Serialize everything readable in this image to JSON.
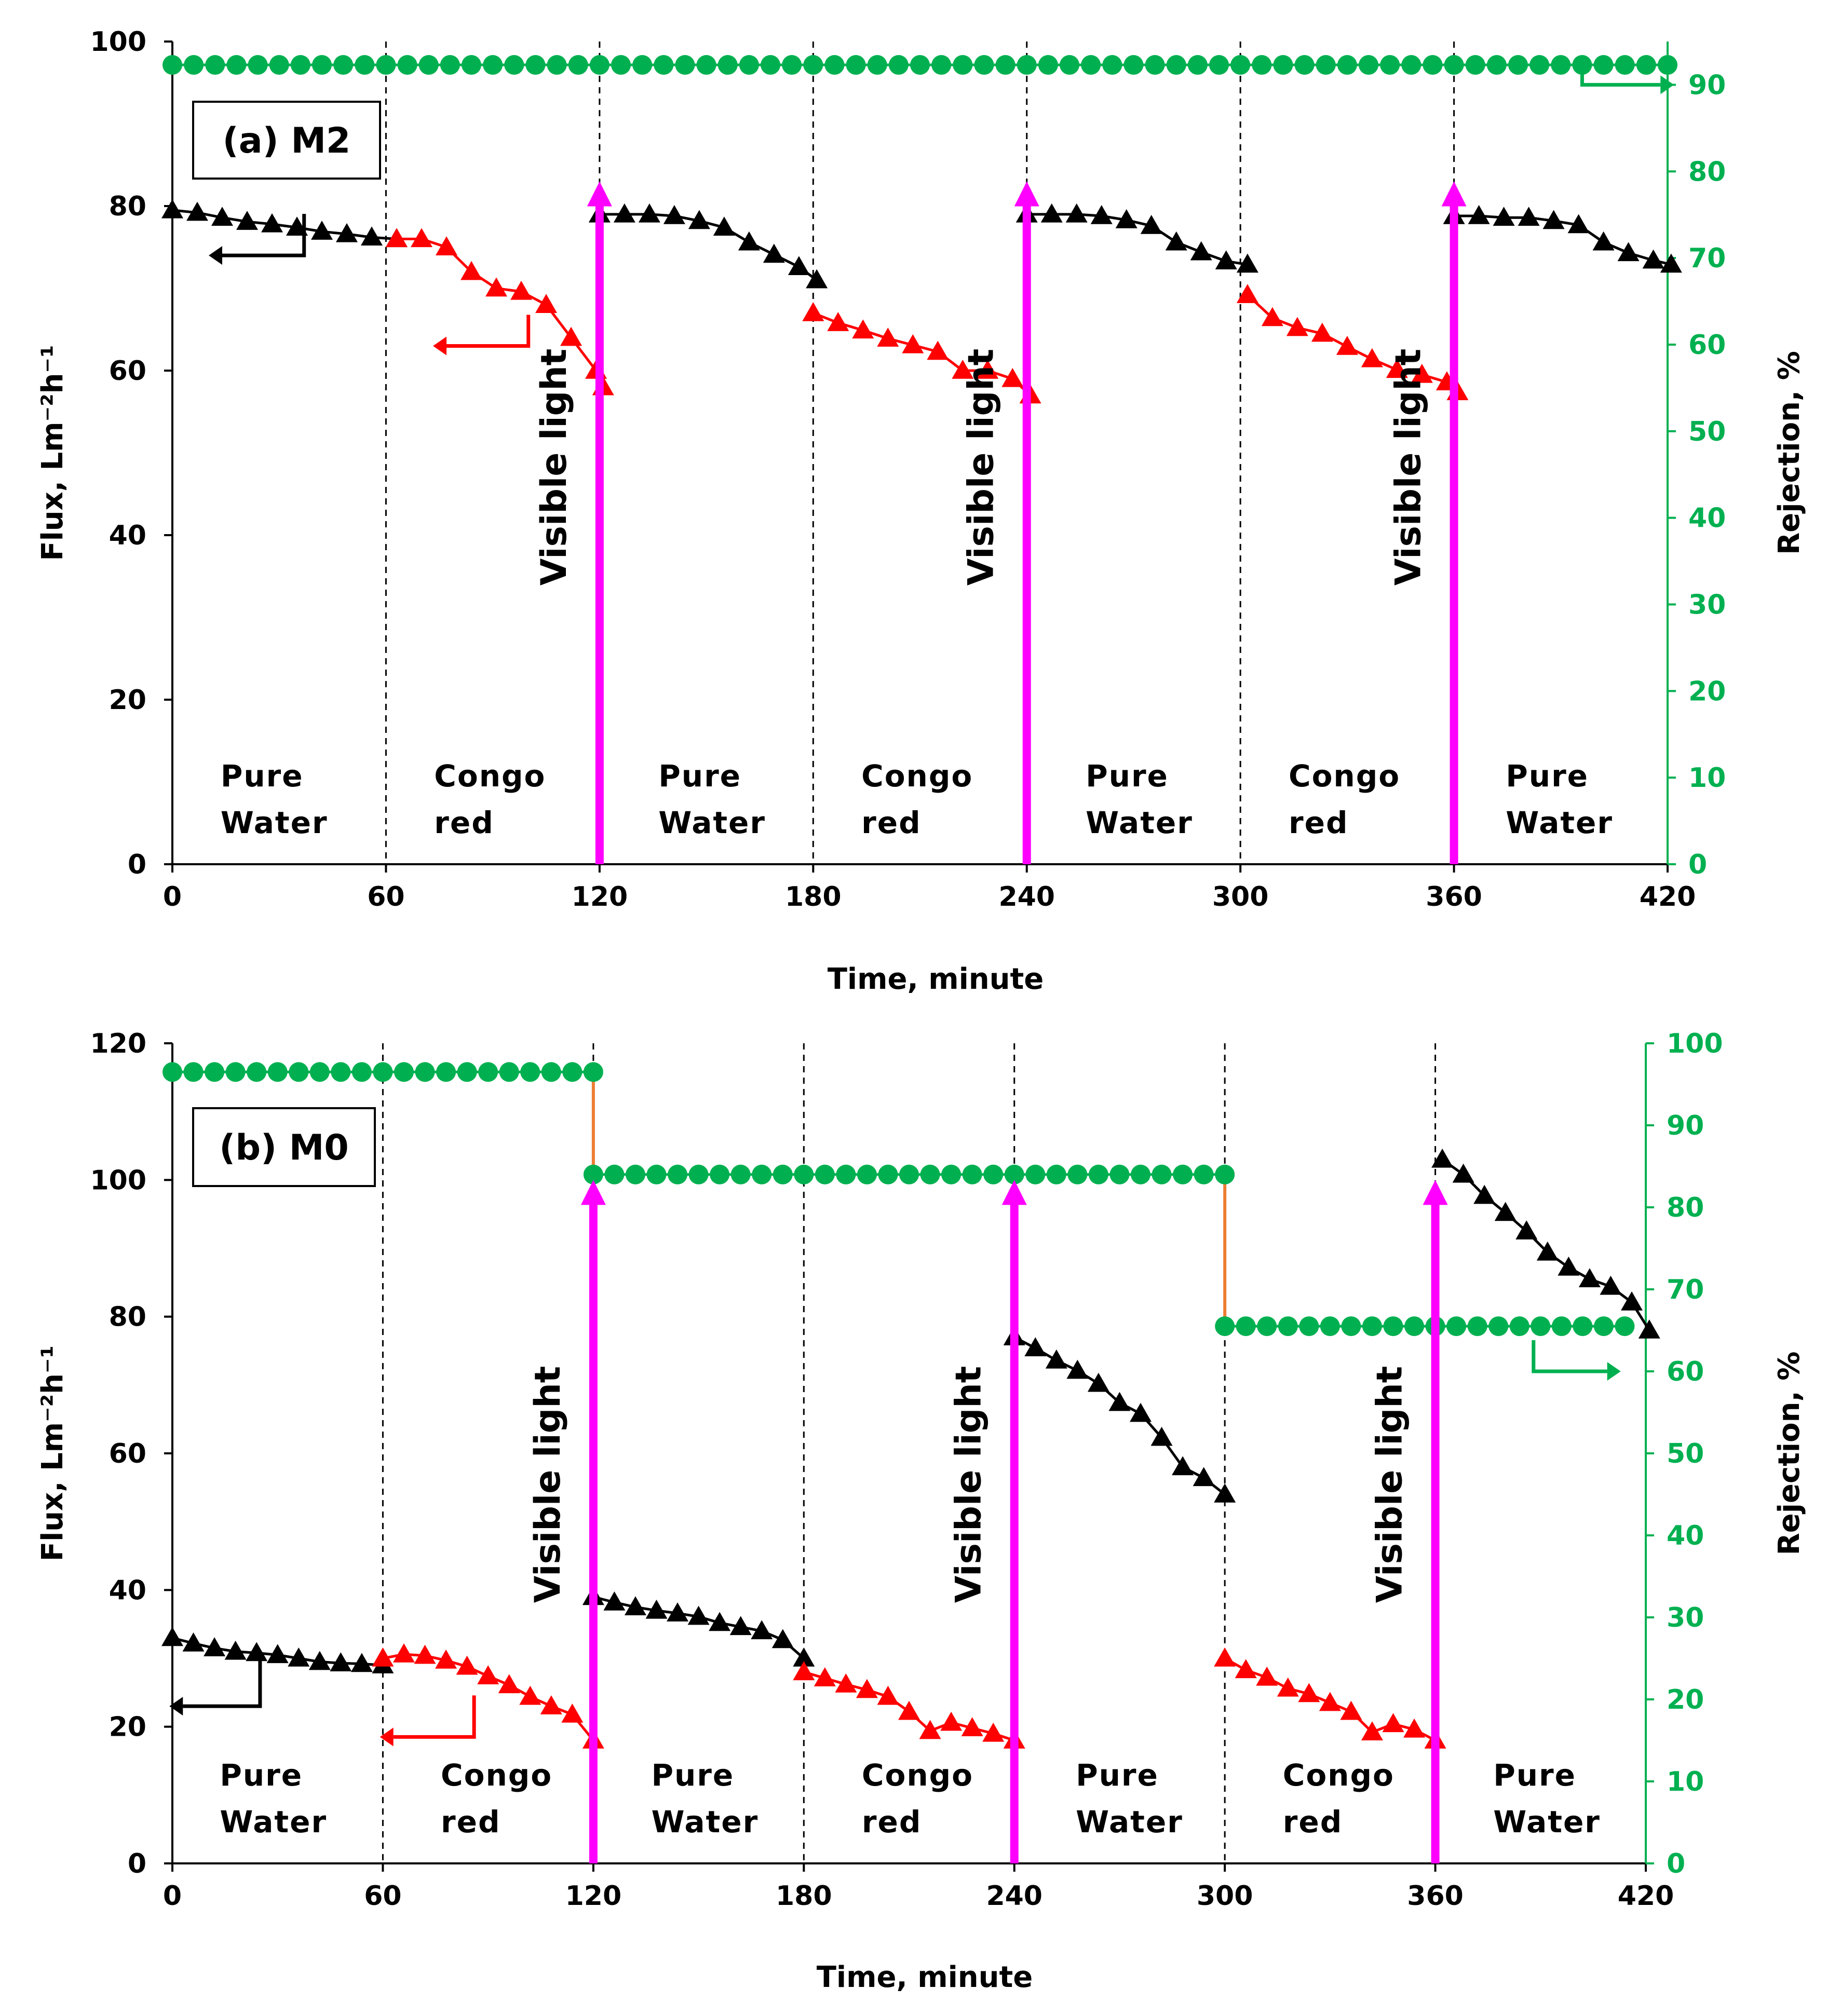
{
  "chart_data": [
    {
      "type": "line",
      "panel_label": "(a) M2",
      "xlabel": "Time, minute",
      "ylabel_left": "Flux, Lm⁻²h⁻¹",
      "ylabel_right": "Rejection, %",
      "xlim": [
        0,
        420
      ],
      "xticks": [
        0,
        60,
        120,
        180,
        240,
        300,
        360,
        420
      ],
      "ylim_left": [
        0,
        100
      ],
      "yticks_left": [
        0,
        20,
        40,
        60,
        80,
        100
      ],
      "ylim_right": [
        0,
        95
      ],
      "yticks_right": [
        0,
        10,
        20,
        30,
        40,
        50,
        60,
        70,
        80,
        90
      ],
      "vlines": [
        60,
        120,
        180,
        240,
        300,
        360
      ],
      "visible_light": {
        "label": "Visible light",
        "times": [
          120,
          240,
          360
        ],
        "top": 83
      },
      "regions": [
        {
          "t": 15,
          "line1": "Pure",
          "line2": "Water"
        },
        {
          "t": 75,
          "line1": "Congo",
          "line2": "red"
        },
        {
          "t": 138,
          "line1": "Pure",
          "line2": "Water"
        },
        {
          "t": 195,
          "line1": "Congo",
          "line2": "red"
        },
        {
          "t": 258,
          "line1": "Pure",
          "line2": "Water"
        },
        {
          "t": 315,
          "line1": "Congo",
          "line2": "red"
        },
        {
          "t": 376,
          "line1": "Pure",
          "line2": "Water"
        }
      ],
      "series": [
        {
          "name": "Pure water flux",
          "axis": "left",
          "color": "#000000",
          "marker": "triangle",
          "segments": [
            {
              "x": [
                0,
                7,
                14,
                21,
                28,
                35,
                42,
                49,
                56,
                63
              ],
              "y": [
                79.5,
                79.2,
                78.6,
                78.1,
                77.8,
                77.4,
                76.9,
                76.6,
                76.2,
                76
              ]
            },
            {
              "x": [
                120,
                127,
                134,
                141,
                148,
                155,
                162,
                169,
                176,
                181
              ],
              "y": [
                79,
                79,
                79,
                78.8,
                78.2,
                77.4,
                75.6,
                74.1,
                72.6,
                71
              ]
            },
            {
              "x": [
                240,
                247,
                254,
                261,
                268,
                275,
                282,
                289,
                296,
                302
              ],
              "y": [
                79,
                79,
                79,
                78.8,
                78.3,
                77.6,
                75.6,
                74.4,
                73.3,
                72.9
              ]
            },
            {
              "x": [
                360,
                367,
                374,
                381,
                388,
                395,
                402,
                409,
                416,
                421
              ],
              "y": [
                78.8,
                78.8,
                78.6,
                78.6,
                78.2,
                77.7,
                75.6,
                74.3,
                73.4,
                72.9
              ]
            }
          ]
        },
        {
          "name": "Congo red flux",
          "axis": "left",
          "color": "#ff0000",
          "marker": "triangle",
          "segments": [
            {
              "x": [
                63,
                70,
                77,
                84,
                91,
                98,
                105,
                112,
                119,
                121
              ],
              "y": [
                76,
                76,
                75,
                72,
                70,
                69.6,
                68,
                64,
                60,
                58
              ]
            },
            {
              "x": [
                180,
                187,
                194,
                201,
                208,
                215,
                222,
                229,
                236,
                241
              ],
              "y": [
                67,
                65.8,
                64.9,
                63.9,
                63.1,
                62.3,
                60,
                60,
                59,
                57
              ]
            },
            {
              "x": [
                302,
                309,
                316,
                323,
                330,
                337,
                344,
                351,
                358,
                361
              ],
              "y": [
                69.2,
                66.4,
                65.2,
                64.5,
                62.9,
                61.4,
                60.1,
                59.5,
                58.6,
                57.4
              ]
            }
          ]
        },
        {
          "name": "Rejection",
          "axis": "right",
          "color": "#00b050",
          "marker": "circle",
          "segments": [
            {
              "x_start": 0,
              "x_end": 420,
              "step": 6,
              "y": 92.3
            }
          ]
        }
      ],
      "legend_arrows": [
        {
          "series": "Pure water flux",
          "direction": "left",
          "value": 74
        },
        {
          "series": "Congo red flux",
          "direction": "left",
          "value": 63
        },
        {
          "series": "Rejection",
          "direction": "right",
          "value": 90
        }
      ]
    },
    {
      "type": "line",
      "panel_label": "(b) M0",
      "xlabel": "Time, minute",
      "ylabel_left": "Flux, Lm⁻²h⁻¹",
      "ylabel_right": "Rejection, %",
      "xlim": [
        0,
        420
      ],
      "xticks": [
        0,
        60,
        120,
        180,
        240,
        300,
        360,
        420
      ],
      "ylim_left": [
        0,
        120
      ],
      "yticks_left": [
        0,
        20,
        40,
        60,
        80,
        100,
        120
      ],
      "ylim_right": [
        0,
        100
      ],
      "yticks_right": [
        0,
        10,
        20,
        30,
        40,
        50,
        60,
        70,
        80,
        90,
        100
      ],
      "vlines": [
        60,
        120,
        180,
        240,
        300,
        360
      ],
      "visible_light": {
        "label": "Visible light",
        "times": [
          120,
          240,
          360
        ],
        "top": 100
      },
      "regions": [
        {
          "t": 15,
          "line1": "Pure",
          "line2": "Water"
        },
        {
          "t": 78,
          "line1": "Congo",
          "line2": "red"
        },
        {
          "t": 138,
          "line1": "Pure",
          "line2": "Water"
        },
        {
          "t": 198,
          "line1": "Congo",
          "line2": "red"
        },
        {
          "t": 259,
          "line1": "Pure",
          "line2": "Water"
        },
        {
          "t": 318,
          "line1": "Congo",
          "line2": "red"
        },
        {
          "t": 378,
          "line1": "Pure",
          "line2": "Water"
        }
      ],
      "series": [
        {
          "name": "Pure water flux",
          "axis": "left",
          "color": "#000000",
          "marker": "triangle",
          "segments": [
            {
              "x": [
                0,
                6,
                12,
                18,
                24,
                30,
                36,
                42,
                48,
                54,
                60
              ],
              "y": [
                33,
                32.2,
                31.5,
                31,
                30.8,
                30.5,
                30,
                29.5,
                29.3,
                29.2,
                29
              ]
            },
            {
              "x": [
                120,
                126,
                132,
                138,
                144,
                150,
                156,
                162,
                168,
                174,
                180
              ],
              "y": [
                39,
                38.2,
                37.5,
                37,
                36.6,
                36.1,
                35.2,
                34.6,
                34,
                32.7,
                30
              ]
            },
            {
              "x": [
                240,
                246,
                252,
                258,
                264,
                270,
                276,
                282,
                288,
                294,
                300
              ],
              "y": [
                77,
                75.4,
                73.6,
                72.1,
                70.2,
                67.4,
                65.8,
                62.3,
                58,
                56.4,
                54
              ]
            },
            {
              "x": [
                362,
                368,
                374,
                380,
                386,
                392,
                398,
                404,
                410,
                416,
                421
              ],
              "y": [
                103,
                100.8,
                97.7,
                95.2,
                92.5,
                89.4,
                87.2,
                85.5,
                84.4,
                82.1,
                78
              ]
            }
          ]
        },
        {
          "name": "Congo red flux",
          "axis": "left",
          "color": "#ff0000",
          "marker": "triangle",
          "segments": [
            {
              "x": [
                60,
                66,
                72,
                78,
                84,
                90,
                96,
                102,
                108,
                114,
                120
              ],
              "y": [
                30,
                30.6,
                30.4,
                29.7,
                28.8,
                27.4,
                26.1,
                24.4,
                23,
                21.8,
                18
              ]
            },
            {
              "x": [
                180,
                186,
                192,
                198,
                204,
                210,
                216,
                222,
                228,
                234,
                240
              ],
              "y": [
                28,
                27.1,
                26.2,
                25.4,
                24.4,
                22.2,
                19.4,
                20.6,
                19.8,
                19,
                18
              ]
            },
            {
              "x": [
                300,
                306,
                312,
                318,
                324,
                330,
                336,
                342,
                348,
                354,
                360
              ],
              "y": [
                30,
                28.3,
                27.2,
                25.6,
                24.8,
                23.5,
                22.2,
                19.2,
                20.4,
                19.6,
                18
              ]
            }
          ]
        },
        {
          "name": "Rejection",
          "axis": "right",
          "color": "#00b050",
          "marker": "circle",
          "segments": [
            {
              "x_start": 0,
              "x_end": 120,
              "step": 6,
              "y": 96.5
            },
            {
              "x_start": 120,
              "x_end": 300,
              "step": 6,
              "y": 84
            },
            {
              "x_start": 300,
              "x_end": 414,
              "step": 6,
              "y": 65.5
            }
          ]
        }
      ],
      "rejection_drop_lines": {
        "color": "#ed7d31",
        "times": [
          120,
          300
        ]
      },
      "legend_arrows": [
        {
          "series": "Pure water flux",
          "direction": "left",
          "value": 23
        },
        {
          "series": "Congo red flux",
          "direction": "left",
          "value": 18.5
        },
        {
          "series": "Rejection",
          "direction": "right",
          "value": 60
        }
      ]
    }
  ]
}
